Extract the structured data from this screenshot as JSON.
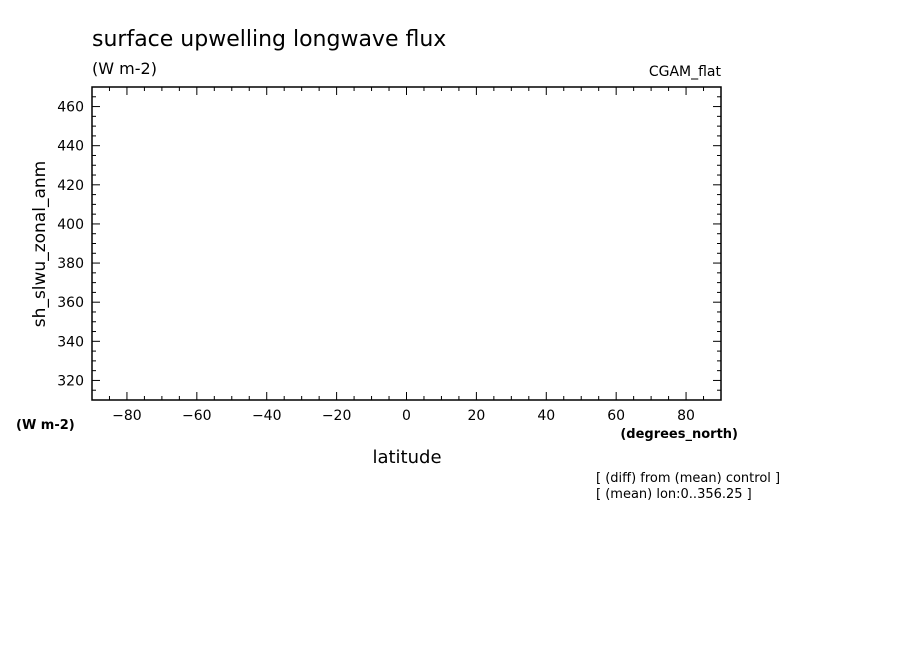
{
  "chart_data": {
    "type": "line",
    "title": "surface upwelling longwave flux",
    "subtitle": "(W m-2)",
    "dataset_label": "CGAM_flat",
    "ylabel": "sh_slwu_zonal_anm",
    "yunits": "(W m-2)",
    "xlabel": "latitude",
    "xunits": "(degrees_north)",
    "xlim": [
      -90,
      90
    ],
    "ylim": [
      310,
      470
    ],
    "x_ticks": [
      -80,
      -60,
      -40,
      -20,
      0,
      20,
      40,
      60,
      80
    ],
    "x_tick_labels": [
      "-80",
      "-60",
      "-40",
      "-20",
      "0",
      "20",
      "40",
      "60",
      "80"
    ],
    "y_ticks": [
      320,
      340,
      360,
      380,
      400,
      420,
      440,
      460
    ],
    "y_tick_labels": [
      "320",
      "340",
      "360",
      "380",
      "400",
      "420",
      "440",
      "460"
    ],
    "x_minor_step": 5,
    "y_minor_step": 5,
    "series": [],
    "annotations": [
      "[ (diff) from (mean) control ]",
      "[ (mean) lon:0..356.25 ]"
    ],
    "grid": false
  }
}
